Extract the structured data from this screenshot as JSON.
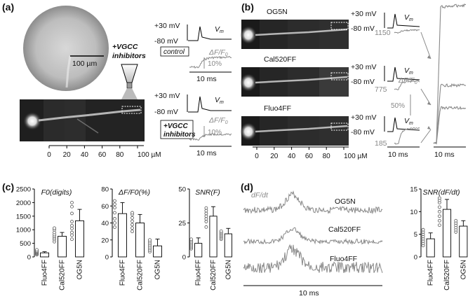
{
  "panels": {
    "a": {
      "label": "(a)",
      "scale_bar": "100 µm",
      "inhibitor_label_1": "+VGCC",
      "inhibitor_label_2": "inhibitors",
      "control_box": "control",
      "inhib_box_1": "+VGCC",
      "inhib_box_2": "inhibitors",
      "v_hi": "+30 mV",
      "v_lo": "-80 mV",
      "vm": "V",
      "vm_sub": "m",
      "dff": "ΔF/F",
      "dff_sub": "0",
      "pct": "10%",
      "time": "10 ms",
      "axis_ticks": [
        "0",
        "20",
        "40",
        "60",
        "80",
        "100 µM"
      ]
    },
    "b": {
      "label": "(b)",
      "dyes": [
        "OG5N",
        "Cal520FF",
        "Fluo4FF"
      ],
      "v_hi": "+30 mV",
      "v_lo": "-80 mV",
      "vm": "V",
      "vm_sub": "m",
      "dff": "ΔF/F",
      "dff_sub": "0",
      "values": [
        "1150",
        "775",
        "185"
      ],
      "pct": "50%",
      "time1": "10 ms",
      "time2": "10 ms",
      "axis_ticks": [
        "0",
        "20",
        "40",
        "60",
        "80",
        "100 µM"
      ]
    },
    "c": {
      "label": "(c)",
      "categories": [
        "Fluo4FF",
        "Cal520FF",
        "OG5N"
      ]
    },
    "d": {
      "label": "(d)",
      "trace_label": "dF/dt",
      "trace_names": [
        "OG5N",
        "Cal520FF",
        "Fluo4FF"
      ],
      "time": "10 ms"
    }
  },
  "chart_data": [
    {
      "type": "bar",
      "title": "F0(digits)",
      "categories": [
        "Fluo4FF",
        "Cal520FF",
        "OG5N"
      ],
      "values": [
        150,
        760,
        1330
      ],
      "errors": [
        40,
        140,
        420
      ],
      "points": [
        [
          80,
          110,
          140,
          160,
          190,
          220,
          260
        ],
        [
          560,
          640,
          700,
          760,
          820,
          900,
          1000,
          1060
        ],
        [
          650,
          800,
          900,
          1050,
          1150,
          1300,
          1600,
          1850,
          2000
        ]
      ],
      "ylim": [
        0,
        2500
      ],
      "yticks": [
        "0",
        "500",
        "1000",
        "1500",
        "2000",
        "2500"
      ]
    },
    {
      "type": "bar",
      "title": "ΔF/F0(%)",
      "categories": [
        "Fluo4FF",
        "Cal520FF",
        "OG5N"
      ],
      "values": [
        51,
        40,
        13
      ],
      "errors": [
        13,
        10,
        8
      ],
      "points": [
        [
          35,
          40,
          45,
          52,
          58,
          62,
          66
        ],
        [
          30,
          34,
          38,
          42,
          46,
          50,
          52
        ],
        [
          6,
          8,
          10,
          12,
          14,
          16,
          18,
          20
        ]
      ],
      "ylim": [
        0,
        80
      ],
      "yticks": [
        "0",
        "20",
        "40",
        "60",
        "80"
      ]
    },
    {
      "type": "bar",
      "title": "SNR(F)",
      "categories": [
        "Fluo4FF",
        "Cal520FF",
        "OG5N"
      ],
      "values": [
        10,
        30,
        17
      ],
      "errors": [
        4,
        7,
        4
      ],
      "points": [
        [
          6,
          7,
          8,
          9,
          10,
          11,
          12,
          13
        ],
        [
          22,
          26,
          28,
          30,
          32,
          34,
          36
        ],
        [
          13,
          14,
          15,
          16,
          17,
          18,
          19
        ]
      ],
      "ylim": [
        0,
        50
      ],
      "yticks": [
        "0",
        "25",
        "50"
      ]
    },
    {
      "type": "bar",
      "title": "SNR(dF/dt)",
      "categories": [
        "Fluo4FF",
        "Cal520FF",
        "OG5N"
      ],
      "values": [
        4,
        10.5,
        6.8
      ],
      "errors": [
        1.3,
        2.2,
        1.2
      ],
      "points": [
        [
          2.5,
          3,
          3.5,
          4,
          4.5,
          5,
          5.5,
          6
        ],
        [
          7,
          8,
          9,
          10,
          11,
          12,
          12.5,
          13
        ],
        [
          5.5,
          6,
          6.5,
          7,
          7.5,
          8
        ]
      ],
      "ylim": [
        0,
        15
      ],
      "yticks": [
        "0",
        "5",
        "10",
        "15"
      ]
    }
  ]
}
